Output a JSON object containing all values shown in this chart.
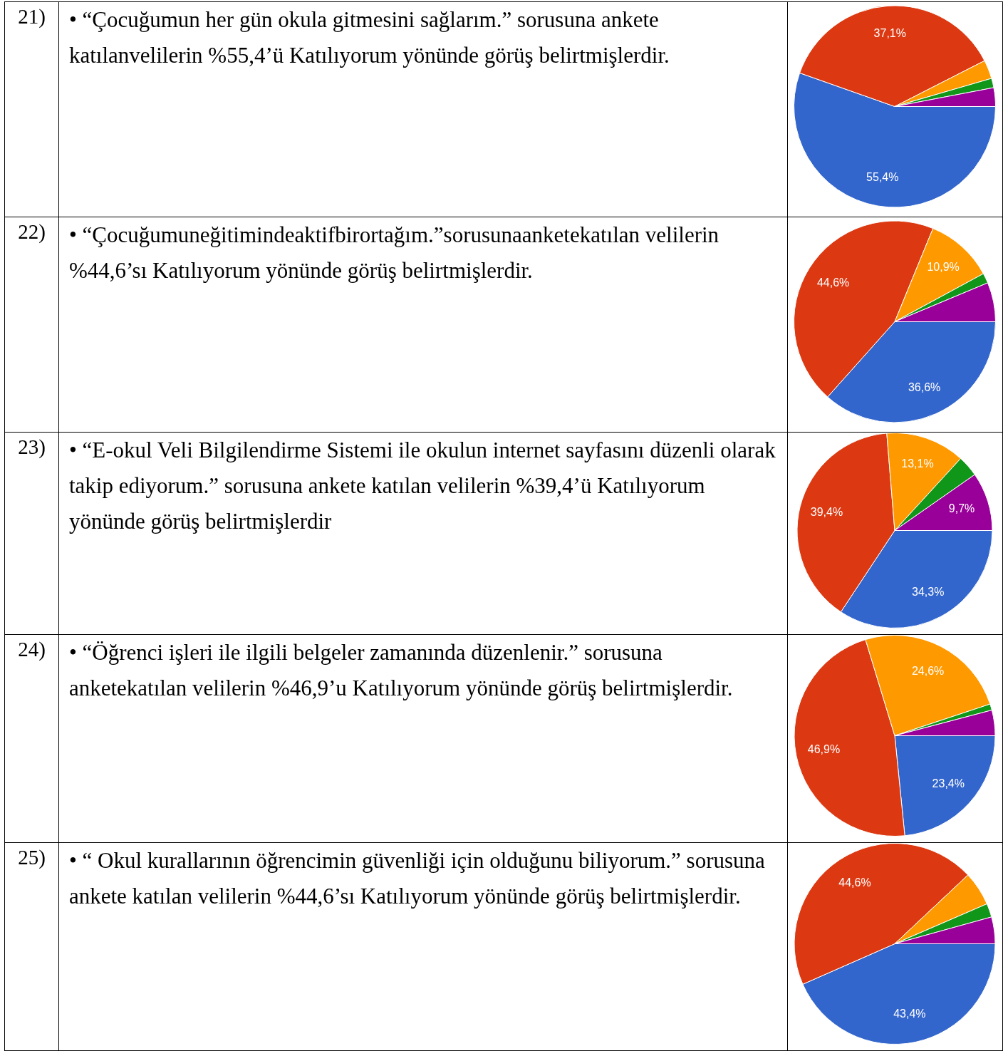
{
  "chart_data": [
    {
      "type": "pie",
      "annotations": [
        "21)",
        "• “Çocuğumun her gün okula gitmesini sağlarım.” sorusuna ankete katılanvelilerin %55,4’ü Katılıyorum yönünde görüş belirtmişlerdir."
      ],
      "categories": [
        null,
        null,
        null,
        null,
        null
      ],
      "values": [
        55.4,
        37.1,
        3.0,
        1.5,
        3.0
      ],
      "value_labels": [
        "55,4%",
        "37,1%",
        null,
        null,
        null
      ],
      "colors": [
        "#3366cc",
        "#dc3912",
        "#ff9900",
        "#109618",
        "#990099"
      ],
      "legend": false
    },
    {
      "type": "pie",
      "annotations": [
        "22)",
        "•  “Çocuğumuneğitimindeaktifbirortağım.”sorusunaanketekatılan velilerin %44,6’sı Katılıyorum yönünde görüş belirtmişlerdir."
      ],
      "categories": [
        null,
        null,
        null,
        null,
        null
      ],
      "values": [
        36.6,
        44.6,
        10.9,
        1.6,
        6.3
      ],
      "value_labels": [
        "36,6%",
        "44,6%",
        "10,9%",
        null,
        null
      ],
      "colors": [
        "#3366cc",
        "#dc3912",
        "#ff9900",
        "#109618",
        "#990099"
      ],
      "legend": false
    },
    {
      "type": "pie",
      "annotations": [
        "23)",
        "• “E-okul Veli Bilgilendirme Sistemi ile okulun internet sayfasını düzenli olarak takip ediyorum.” sorusuna ankete katılan velilerin %39,4’ü Katılıyorum yönünde görüş belirtmişlerdir"
      ],
      "categories": [
        null,
        null,
        null,
        null,
        null
      ],
      "values": [
        34.3,
        39.4,
        13.1,
        3.5,
        9.7
      ],
      "value_labels": [
        "34,3%",
        "39,4%",
        "13,1%",
        null,
        "9,7%"
      ],
      "colors": [
        "#3366cc",
        "#dc3912",
        "#ff9900",
        "#109618",
        "#990099"
      ],
      "legend": false
    },
    {
      "type": "pie",
      "annotations": [
        "24)",
        "• “Öğrenci işleri ile ilgili belgeler zamanında düzenlenir.” sorusuna anketekatılan velilerin %46,9’u Katılıyorum yönünde görüş belirtmişlerdir."
      ],
      "categories": [
        null,
        null,
        null,
        null,
        null
      ],
      "values": [
        23.4,
        46.9,
        24.6,
        1.0,
        4.1
      ],
      "value_labels": [
        "23,4%",
        "46,9%",
        "24,6%",
        null,
        null
      ],
      "colors": [
        "#3366cc",
        "#dc3912",
        "#ff9900",
        "#109618",
        "#990099"
      ],
      "legend": false
    },
    {
      "type": "pie",
      "annotations": [
        "25)",
        "•  “ Okul kurallarının öğrencimin güvenliği için olduğunu biliyorum.” sorusuna ankete katılan velilerin %44,6’sı Katılıyorum yönünde görüş belirtmişlerdir."
      ],
      "categories": [
        null,
        null,
        null,
        null,
        null
      ],
      "values": [
        43.4,
        44.6,
        5.5,
        2.2,
        4.3
      ],
      "value_labels": [
        "43,4%",
        "44,6%",
        null,
        null,
        null
      ],
      "colors": [
        "#3366cc",
        "#dc3912",
        "#ff9900",
        "#109618",
        "#990099"
      ],
      "legend": false
    }
  ]
}
